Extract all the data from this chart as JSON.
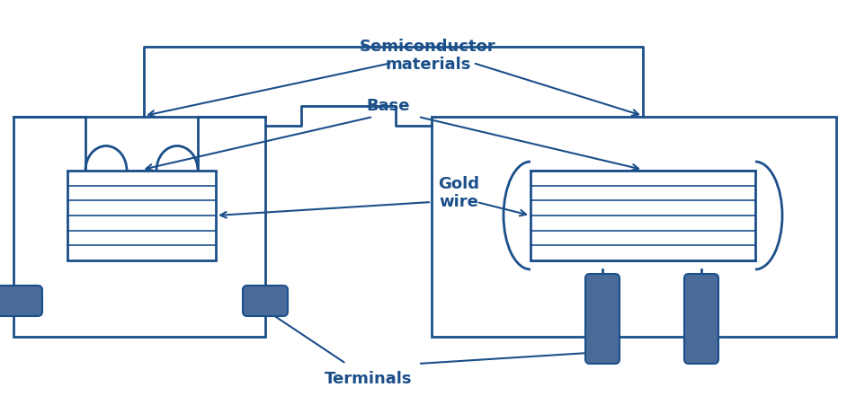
{
  "line_color": "#1B4F8A",
  "fill_color": "#4A6B9A",
  "bg_color": "#ffffff",
  "text_color": "#1B4F8A",
  "label_semiconductor": "Semiconductor\nmaterials",
  "label_base": "Base",
  "label_gold_wire": "Gold\nwire",
  "label_terminals": "Terminals",
  "lw": 2.0,
  "figsize": [
    9.52,
    4.41
  ],
  "dpi": 100
}
